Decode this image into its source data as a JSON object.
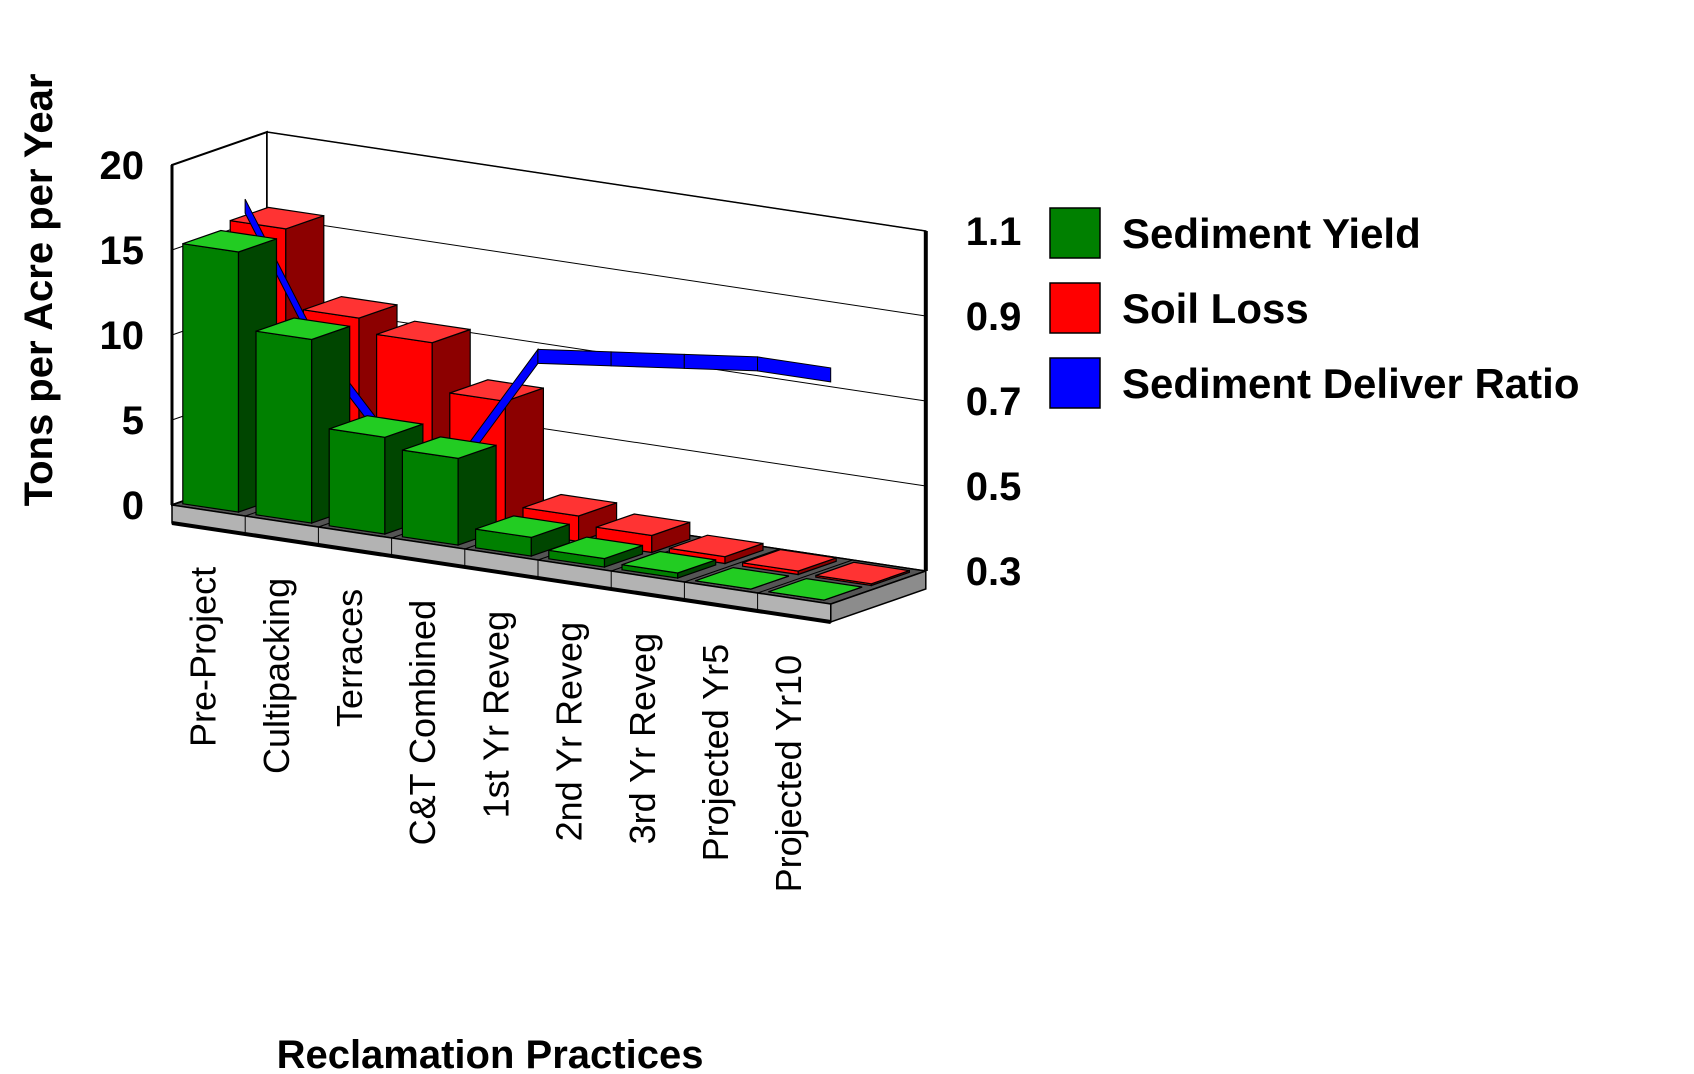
{
  "chart_data": {
    "type": "bar",
    "title": "",
    "categories": [
      "Pre-Project",
      "Cultipacking",
      "Terraces",
      "C&T Combined",
      "1st Yr Reveg",
      "2nd Yr Reveg",
      "3rd Yr Reveg",
      "Projected Yr5",
      "Projected Yr10"
    ],
    "series": [
      {
        "name": "Sediment Yield",
        "kind": "bar",
        "axis": "left",
        "color": "#008000",
        "values": [
          15.3,
          10.8,
          5.7,
          5.1,
          1.1,
          0.5,
          0.3,
          0.0,
          0.0
        ]
      },
      {
        "name": "Soil Loss",
        "kind": "bar",
        "axis": "left",
        "color": "#FF0000",
        "values": [
          15.8,
          11.2,
          10.4,
          7.6,
          1.5,
          1.0,
          0.4,
          0.2,
          0.1
        ]
      },
      {
        "name": "Sediment Deliver Ratio",
        "kind": "line",
        "axis": "right",
        "color": "#0000FF",
        "values": [
          0.99,
          0.68,
          0.48,
          0.48,
          0.74,
          0.76,
          0.78,
          0.8,
          0.8
        ]
      }
    ],
    "ylabel": "Tons per Acre per Year",
    "xlabel": "Reclamation Practices",
    "ylim": [
      0,
      20
    ],
    "yticks": [
      "0",
      "5",
      "10",
      "15",
      "20"
    ],
    "y2lim": [
      0.3,
      1.1
    ],
    "y2ticks": [
      "0.3",
      "0.5",
      "0.7",
      "0.9",
      "1.1"
    ],
    "legend_position": "right",
    "grid": true,
    "style": "3d"
  }
}
